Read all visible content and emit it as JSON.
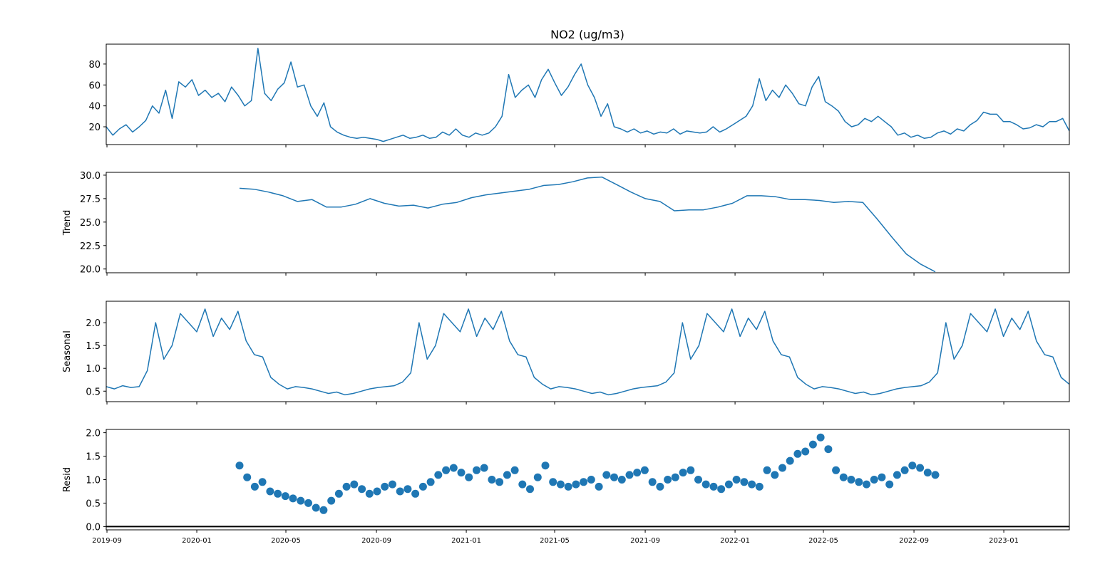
{
  "title": "NO2 (ug/m3)",
  "colors": {
    "series": "#1f77b4",
    "frame": "#000000",
    "zero_line": "#000000"
  },
  "chart_data": [
    {
      "type": "line",
      "panel": "observed",
      "ylabel": "",
      "ylim": [
        3,
        99
      ],
      "yticks": [
        20,
        40,
        60,
        80
      ],
      "xlim": [
        "2019-08-31",
        "2023-03-31"
      ],
      "x_start": "2019-08-31",
      "x_end": "2023-03-31",
      "values": [
        20,
        12,
        18,
        22,
        15,
        20,
        26,
        40,
        33,
        55,
        28,
        63,
        58,
        65,
        50,
        55,
        48,
        52,
        44,
        58,
        50,
        40,
        45,
        95,
        52,
        45,
        56,
        62,
        82,
        58,
        60,
        40,
        30,
        43,
        20,
        15,
        12,
        10,
        9,
        10,
        9,
        8,
        6,
        8,
        10,
        12,
        9,
        10,
        12,
        9,
        10,
        15,
        12,
        18,
        12,
        10,
        14,
        12,
        14,
        20,
        30,
        70,
        48,
        55,
        60,
        48,
        65,
        75,
        62,
        50,
        58,
        70,
        80,
        60,
        48,
        30,
        42,
        20,
        18,
        15,
        18,
        14,
        16,
        13,
        15,
        14,
        18,
        13,
        16,
        15,
        14,
        15,
        20,
        15,
        18,
        22,
        26,
        30,
        40,
        66,
        45,
        55,
        48,
        60,
        52,
        42,
        40,
        58,
        68,
        44,
        40,
        35,
        25,
        20,
        22,
        28,
        25,
        30,
        25,
        20,
        12,
        14,
        10,
        12,
        9,
        10,
        14,
        16,
        13,
        18,
        16,
        22,
        26,
        34,
        32,
        32,
        25,
        25,
        22,
        18,
        19,
        22,
        20,
        25,
        25,
        28,
        16
      ]
    },
    {
      "type": "line",
      "panel": "trend",
      "ylabel": "Trend",
      "ylim": [
        19.6,
        30.3
      ],
      "yticks": [
        20.0,
        22.5,
        25.0,
        27.5,
        30.0
      ],
      "ytick_labels": [
        "20.0",
        "22.5",
        "25.0",
        "27.5",
        "30.0"
      ],
      "x_start": "2020-02-28",
      "x_end": "2022-09-30",
      "values": [
        28.6,
        28.5,
        28.2,
        27.8,
        27.2,
        27.4,
        26.6,
        26.6,
        26.9,
        27.5,
        27.0,
        26.7,
        26.8,
        26.5,
        26.9,
        27.1,
        27.6,
        27.9,
        28.1,
        28.3,
        28.5,
        28.9,
        29.0,
        29.3,
        29.7,
        29.8,
        29.0,
        28.2,
        27.5,
        27.2,
        26.2,
        26.3,
        26.3,
        26.6,
        27.0,
        27.8,
        27.8,
        27.7,
        27.4,
        27.4,
        27.3,
        27.1,
        27.2,
        27.1,
        25.3,
        23.4,
        21.6,
        20.5,
        19.7
      ]
    },
    {
      "type": "line",
      "panel": "seasonal",
      "ylabel": "Seasonal",
      "ylim": [
        0.27,
        2.47
      ],
      "yticks": [
        0.5,
        1.0,
        1.5,
        2.0
      ],
      "ytick_labels": [
        "0.5",
        "1.0",
        "1.5",
        "2.0"
      ],
      "x_start": "2019-08-31",
      "x_end": "2023-03-31",
      "values": [
        0.6,
        0.55,
        0.62,
        0.58,
        0.6,
        0.95,
        2.0,
        1.2,
        1.5,
        2.2,
        2.0,
        1.8,
        2.3,
        1.7,
        2.1,
        1.85,
        2.25,
        1.6,
        1.3,
        1.25,
        0.8,
        0.65,
        0.55,
        0.6,
        0.58,
        0.55,
        0.5,
        0.45,
        0.48,
        0.42,
        0.45,
        0.5,
        0.55,
        0.58,
        0.6,
        0.62,
        0.7,
        0.9,
        2.0,
        1.2,
        1.5,
        2.2,
        2.0,
        1.8,
        2.3,
        1.7,
        2.1,
        1.85,
        2.25,
        1.6,
        1.3,
        1.25,
        0.8,
        0.65,
        0.55,
        0.6,
        0.58,
        0.55,
        0.5,
        0.45,
        0.48,
        0.42,
        0.45,
        0.5,
        0.55,
        0.58,
        0.6,
        0.62,
        0.7,
        0.9,
        2.0,
        1.2,
        1.5,
        2.2,
        2.0,
        1.8,
        2.3,
        1.7,
        2.1,
        1.85,
        2.25,
        1.6,
        1.3,
        1.25,
        0.8,
        0.65,
        0.55,
        0.6,
        0.58,
        0.55,
        0.5,
        0.45,
        0.48,
        0.42,
        0.45,
        0.5,
        0.55,
        0.58,
        0.6,
        0.62,
        0.7,
        0.9,
        2.0,
        1.2,
        1.5,
        2.2,
        2.0,
        1.8,
        2.3,
        1.7,
        2.1,
        1.85,
        2.25,
        1.6,
        1.3,
        1.25,
        0.8,
        0.65
      ]
    },
    {
      "type": "scatter",
      "panel": "resid",
      "ylabel": "Resid",
      "ylim": [
        -0.07,
        2.07
      ],
      "yticks": [
        0.0,
        0.5,
        1.0,
        1.5,
        2.0
      ],
      "ytick_labels": [
        "0.0",
        "0.5",
        "1.0",
        "1.5",
        "2.0"
      ],
      "baseline": 0.0,
      "x_start": "2020-02-28",
      "x_end": "2022-09-30",
      "values": [
        1.3,
        1.05,
        0.85,
        0.95,
        0.75,
        0.7,
        0.65,
        0.6,
        0.55,
        0.5,
        0.4,
        0.35,
        0.55,
        0.7,
        0.85,
        0.9,
        0.8,
        0.7,
        0.75,
        0.85,
        0.9,
        0.75,
        0.8,
        0.7,
        0.85,
        0.95,
        1.1,
        1.2,
        1.25,
        1.15,
        1.05,
        1.2,
        1.25,
        1.0,
        0.95,
        1.1,
        1.2,
        0.9,
        0.8,
        1.05,
        1.3,
        0.95,
        0.9,
        0.85,
        0.9,
        0.95,
        1.0,
        0.85,
        1.1,
        1.05,
        1.0,
        1.1,
        1.15,
        1.2,
        0.95,
        0.85,
        1.0,
        1.05,
        1.15,
        1.2,
        1.0,
        0.9,
        0.85,
        0.8,
        0.9,
        1.0,
        0.95,
        0.9,
        0.85,
        1.2,
        1.1,
        1.25,
        1.4,
        1.55,
        1.6,
        1.75,
        1.9,
        1.65,
        1.2,
        1.05,
        1.0,
        0.95,
        0.9,
        1.0,
        1.05,
        0.9,
        1.1,
        1.2,
        1.3,
        1.25,
        1.15,
        1.1
      ]
    }
  ],
  "x_axis": {
    "ticks": [
      "2019-09",
      "2020-01",
      "2020-05",
      "2020-09",
      "2021-01",
      "2021-05",
      "2021-09",
      "2022-01",
      "2022-05",
      "2022-09",
      "2023-01"
    ]
  }
}
